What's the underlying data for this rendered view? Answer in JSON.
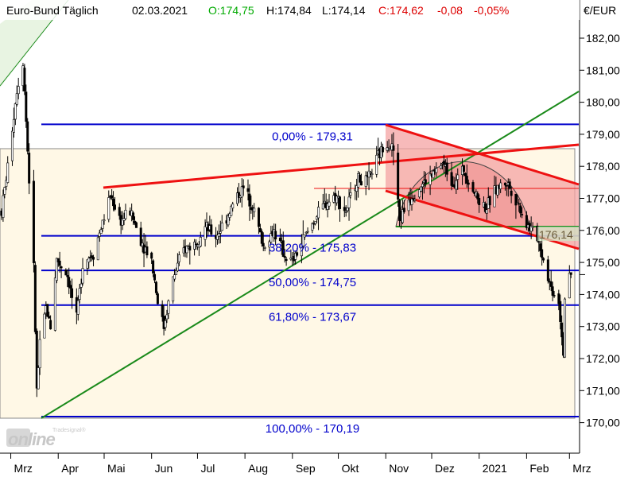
{
  "header": {
    "instrument": "Euro-Bund Täglich",
    "date": "02.03.2021",
    "open": "O:174,75",
    "high": "H:174,84",
    "low": "L:174,14",
    "close": "C:174,62",
    "change": "-0,08",
    "change_pct": "-0,05%"
  },
  "currency_label": "€/EUR",
  "watermark": {
    "top": "Tradesignal®",
    "main": "online"
  },
  "colors": {
    "candle_up": "#ffffff",
    "candle_down": "#000000",
    "fib_line": "#0000cc",
    "trend_green": "#1a8a1a",
    "channel_red": "#ee1111",
    "channel_fill": "#f4a3a3",
    "range_fill": "#fff8e6",
    "text_green": "#00aa00",
    "text_red": "#dd0000"
  },
  "chart_data": {
    "type": "candlestick",
    "title": "Euro-Bund Täglich",
    "ylabel": "€/EUR",
    "ylim": [
      169.6,
      183.0
    ],
    "y_ticks": [
      170,
      171,
      172,
      173,
      174,
      175,
      176,
      177,
      178,
      179,
      180,
      181,
      182
    ],
    "y_tick_labels": [
      "170,00",
      "171,00",
      "172,00",
      "173,00",
      "174,00",
      "175,00",
      "176,00",
      "177,00",
      "178,00",
      "179,00",
      "180,00",
      "181,00",
      "182,00"
    ],
    "x_ticks": [
      "Mrz",
      "Apr",
      "Mai",
      "Jun",
      "Jul",
      "Aug",
      "Sep",
      "Okt",
      "Nov",
      "Dez",
      "2021",
      "Feb",
      "Mrz"
    ],
    "x_range": [
      "2020-02-24",
      "2021-03-05"
    ],
    "last_price": 174.62,
    "fibonacci": [
      {
        "label": "0,00% - 179,31",
        "value": 179.31
      },
      {
        "label": "38,20% - 175,83",
        "value": 175.83
      },
      {
        "label": "50,00% - 174,75",
        "value": 174.75
      },
      {
        "label": "61,80% - 173,67",
        "value": 173.67
      },
      {
        "label": "100,00% - 170,19",
        "value": 170.19
      }
    ],
    "annotation_value": "176,14",
    "price_path": [
      [
        "2020-02-24",
        176.6
      ],
      [
        "2020-02-28",
        178.0
      ],
      [
        "2020-03-05",
        180.4
      ],
      [
        "2020-03-09",
        181.3
      ],
      [
        "2020-03-12",
        178.5
      ],
      [
        "2020-03-16",
        174.8
      ],
      [
        "2020-03-18",
        171.0
      ],
      [
        "2020-03-20",
        172.4
      ],
      [
        "2020-03-24",
        173.6
      ],
      [
        "2020-03-27",
        173.0
      ],
      [
        "2020-03-31",
        175.1
      ],
      [
        "2020-04-07",
        174.6
      ],
      [
        "2020-04-13",
        173.2
      ],
      [
        "2020-04-17",
        175.0
      ],
      [
        "2020-04-24",
        175.3
      ],
      [
        "2020-05-01",
        176.4
      ],
      [
        "2020-05-05",
        177.1
      ],
      [
        "2020-05-12",
        176.3
      ],
      [
        "2020-05-18",
        176.6
      ],
      [
        "2020-05-25",
        175.7
      ],
      [
        "2020-06-01",
        175.1
      ],
      [
        "2020-06-05",
        173.8
      ],
      [
        "2020-06-09",
        173.0
      ],
      [
        "2020-06-15",
        174.5
      ],
      [
        "2020-06-22",
        175.4
      ],
      [
        "2020-06-29",
        175.6
      ],
      [
        "2020-07-06",
        176.1
      ],
      [
        "2020-07-13",
        175.8
      ],
      [
        "2020-07-20",
        176.4
      ],
      [
        "2020-07-27",
        177.1
      ],
      [
        "2020-07-31",
        177.3
      ],
      [
        "2020-08-06",
        176.8
      ],
      [
        "2020-08-13",
        175.5
      ],
      [
        "2020-08-20",
        176.0
      ],
      [
        "2020-08-27",
        175.2
      ],
      [
        "2020-09-01",
        175.0
      ],
      [
        "2020-09-08",
        175.7
      ],
      [
        "2020-09-15",
        176.3
      ],
      [
        "2020-09-22",
        176.8
      ],
      [
        "2020-09-29",
        177.1
      ],
      [
        "2020-10-06",
        176.6
      ],
      [
        "2020-10-13",
        177.6
      ],
      [
        "2020-10-20",
        177.5
      ],
      [
        "2020-10-27",
        178.3
      ],
      [
        "2020-11-02",
        178.8
      ],
      [
        "2020-11-06",
        178.5
      ],
      [
        "2020-11-10",
        176.3
      ],
      [
        "2020-11-16",
        177.0
      ],
      [
        "2020-11-24",
        177.4
      ],
      [
        "2020-12-01",
        177.7
      ],
      [
        "2020-12-08",
        178.1
      ],
      [
        "2020-12-15",
        177.5
      ],
      [
        "2020-12-22",
        177.9
      ],
      [
        "2020-12-31",
        177.0
      ],
      [
        "2021-01-06",
        176.7
      ],
      [
        "2021-01-12",
        177.3
      ],
      [
        "2021-01-19",
        177.5
      ],
      [
        "2021-01-26",
        176.9
      ],
      [
        "2021-02-01",
        176.2
      ],
      [
        "2021-02-08",
        175.8
      ],
      [
        "2021-02-12",
        175.1
      ],
      [
        "2021-02-17",
        174.2
      ],
      [
        "2021-02-22",
        173.8
      ],
      [
        "2021-02-25",
        172.2
      ],
      [
        "2021-02-26",
        173.9
      ],
      [
        "2021-03-02",
        174.6
      ]
    ]
  }
}
